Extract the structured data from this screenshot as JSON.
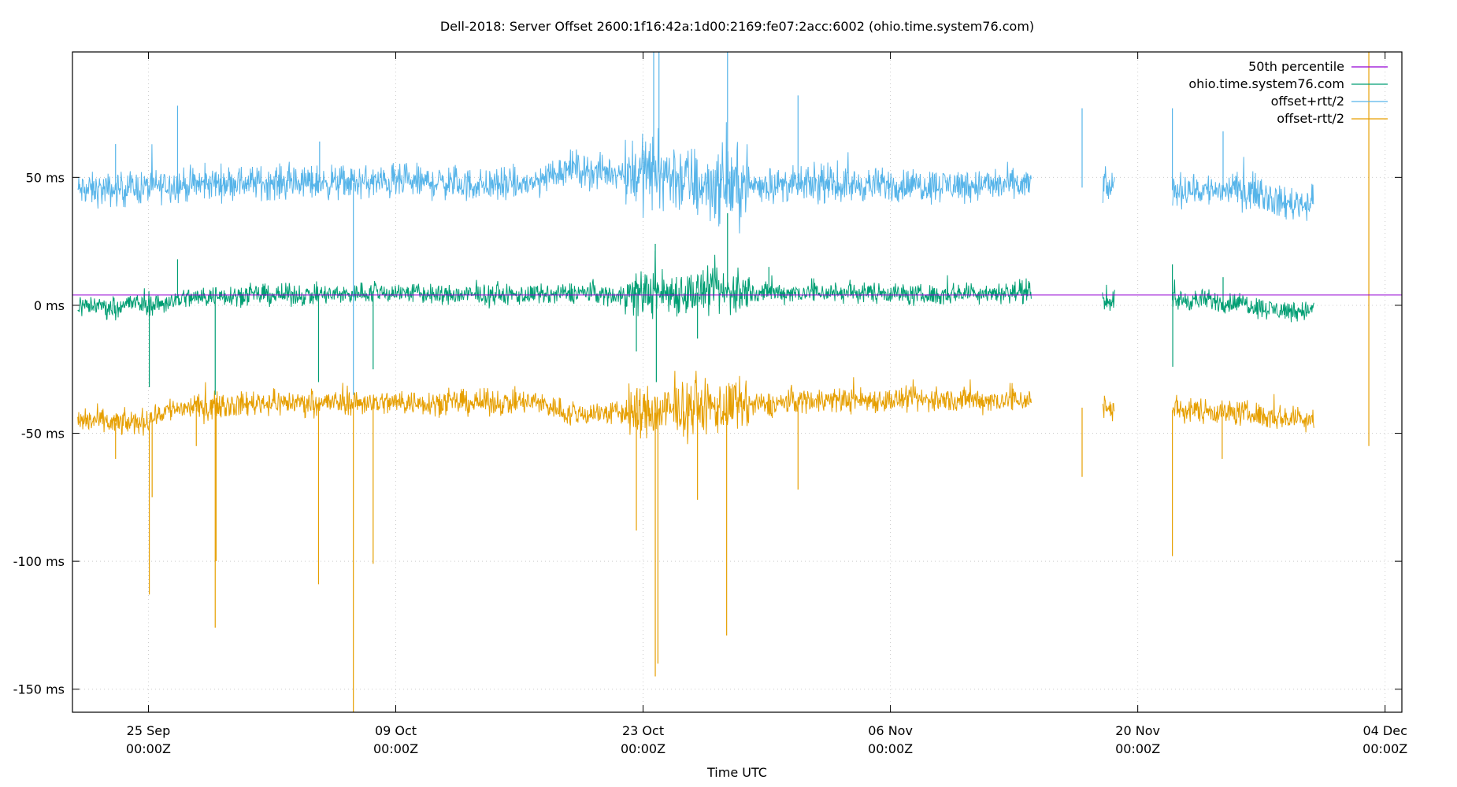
{
  "chart_data": {
    "type": "line",
    "title": "Dell-2018: Server Offset 2600:1f16:42a:1d00:2169:fe07:2acc:6002 (ohio.time.system76.com)",
    "xlabel": "Time UTC",
    "ylabel": "",
    "x_unit": "days since 25 Sep 00:00Z",
    "xlim": [
      -4.3,
      70.95
    ],
    "ylim": [
      -159,
      99
    ],
    "grid": true,
    "legend_position": "top-right",
    "y_ticks": [
      {
        "value": 50,
        "label": "50 ms"
      },
      {
        "value": 0,
        "label": "0 ms"
      },
      {
        "value": -50,
        "label": "-50 ms"
      },
      {
        "value": -100,
        "label": "-100 ms"
      },
      {
        "value": -150,
        "label": "-150 ms"
      }
    ],
    "x_ticks": [
      {
        "value": 0,
        "date": "25 Sep",
        "time": "00:00Z"
      },
      {
        "value": 14,
        "date": "09 Oct",
        "time": "00:00Z"
      },
      {
        "value": 28,
        "date": "23 Oct",
        "time": "00:00Z"
      },
      {
        "value": 42,
        "date": "06 Nov",
        "time": "00:00Z"
      },
      {
        "value": 56,
        "date": "20 Nov",
        "time": "00:00Z"
      },
      {
        "value": 70,
        "date": "04 Dec",
        "time": "00:00Z"
      }
    ],
    "x_days": [
      -4,
      -3,
      -2,
      -1,
      0,
      1,
      2,
      3,
      4,
      5,
      6,
      7,
      8,
      9,
      10,
      11,
      12,
      13,
      14,
      15,
      16,
      17,
      18,
      19,
      20,
      21,
      22,
      23,
      24,
      25,
      26,
      27,
      28,
      29,
      30,
      31,
      32,
      33,
      34,
      35,
      36,
      37,
      38,
      39,
      40,
      41,
      42,
      43,
      44,
      45,
      46,
      47,
      48,
      49,
      50,
      51,
      52,
      53,
      54,
      55,
      56,
      57,
      58,
      59,
      60,
      61,
      62,
      63,
      64,
      65,
      66,
      67,
      68,
      69,
      70
    ],
    "data_gap_days": [
      54.7,
      57.96
    ],
    "high_variability_days": [
      27,
      34
    ],
    "series": [
      {
        "name": "50th percentile",
        "color": "#9400d3",
        "constant": 4
      },
      {
        "name": "ohio.time.system76.com",
        "color": "#009e73",
        "noise_ms": 2.5,
        "values": [
          0,
          0,
          -1,
          1,
          0,
          1,
          3,
          3,
          4,
          4,
          4,
          4,
          4,
          4,
          4,
          4,
          5,
          5,
          5,
          5,
          4,
          4,
          4,
          4,
          4,
          4,
          4,
          4,
          5,
          5,
          4,
          4,
          5,
          5,
          5,
          5,
          5,
          5,
          5,
          5,
          5,
          5,
          5,
          5,
          5,
          5,
          5,
          4,
          4,
          4,
          5,
          5,
          5,
          5,
          5,
          null,
          null,
          null,
          2,
          2,
          2,
          2,
          2,
          2,
          2,
          1,
          1,
          -1,
          -2,
          -2,
          -2
        ]
      },
      {
        "name": "offset+rtt/2",
        "color": "#56b4e9",
        "noise_ms": 4,
        "values": [
          45,
          45,
          45,
          46,
          46,
          47,
          47,
          47,
          48,
          48,
          48,
          48,
          48,
          48,
          48,
          48,
          48,
          48,
          48,
          48,
          48,
          48,
          47,
          47,
          47,
          47,
          48,
          52,
          54,
          52,
          52,
          52,
          52,
          52,
          50,
          47,
          47,
          47,
          47,
          47,
          47,
          47,
          47,
          47,
          47,
          47,
          47,
          47,
          47,
          47,
          47,
          47,
          47,
          47,
          47,
          null,
          null,
          null,
          46,
          46,
          45,
          45,
          45,
          45,
          45,
          45,
          45,
          44,
          40,
          40,
          40
        ]
      },
      {
        "name": "offset-rtt/2",
        "color": "#e69f00",
        "noise_ms": 3,
        "values": [
          -45,
          -45,
          -46,
          -46,
          -45,
          -41,
          -40,
          -40,
          -39,
          -39,
          -38,
          -38,
          -38,
          -38,
          -38,
          -38,
          -38,
          -38,
          -38,
          -38,
          -38,
          -38,
          -38,
          -38,
          -38,
          -38,
          -38,
          -40,
          -43,
          -42,
          -42,
          -42,
          -42,
          -42,
          -41,
          -40,
          -40,
          -40,
          -39,
          -39,
          -38,
          -37,
          -37,
          -37,
          -37,
          -37,
          -37,
          -37,
          -37,
          -37,
          -37,
          -37,
          -37,
          -37,
          -37,
          null,
          null,
          null,
          -40,
          -40,
          -41,
          -41,
          -41,
          -41,
          -41,
          -42,
          -42,
          -43,
          -44,
          -44,
          -44
        ]
      }
    ],
    "spikes": [
      {
        "series": 2,
        "day": -1.86,
        "value": 63
      },
      {
        "series": 2,
        "day": 1.65,
        "value": 78
      },
      {
        "series": 2,
        "day": 9.69,
        "value": 64
      },
      {
        "series": 2,
        "day": 11.6,
        "value": -35
      },
      {
        "series": 2,
        "day": 28.6,
        "value": 99
      },
      {
        "series": 2,
        "day": 28.9,
        "value": 99
      },
      {
        "series": 2,
        "day": 32.78,
        "value": 99
      },
      {
        "series": 2,
        "day": 36.77,
        "value": 82
      },
      {
        "series": 2,
        "day": 52.85,
        "value": 77
      },
      {
        "series": 2,
        "day": 57.96,
        "value": 77
      },
      {
        "series": 2,
        "day": 60.83,
        "value": 68
      },
      {
        "series": 1,
        "day": 0.05,
        "value": -32
      },
      {
        "series": 1,
        "day": 1.65,
        "value": 18
      },
      {
        "series": 1,
        "day": 3.78,
        "value": -35
      },
      {
        "series": 1,
        "day": 9.63,
        "value": -30
      },
      {
        "series": 1,
        "day": 12.72,
        "value": -25
      },
      {
        "series": 1,
        "day": 27.62,
        "value": -18
      },
      {
        "series": 1,
        "day": 28.69,
        "value": 24
      },
      {
        "series": 1,
        "day": 28.75,
        "value": -30
      },
      {
        "series": 1,
        "day": 31.08,
        "value": -13
      },
      {
        "series": 1,
        "day": 32.78,
        "value": 36
      },
      {
        "series": 1,
        "day": 35.12,
        "value": 15
      },
      {
        "series": 1,
        "day": 57.96,
        "value": 16
      },
      {
        "series": 1,
        "day": 57.98,
        "value": -24
      },
      {
        "series": 1,
        "day": 60.83,
        "value": 11
      },
      {
        "series": 3,
        "day": -1.86,
        "value": -60
      },
      {
        "series": 3,
        "day": 0.05,
        "value": -113
      },
      {
        "series": 3,
        "day": 0.21,
        "value": -75
      },
      {
        "series": 3,
        "day": 2.71,
        "value": -55
      },
      {
        "series": 3,
        "day": 3.78,
        "value": -126
      },
      {
        "series": 3,
        "day": 3.83,
        "value": -100
      },
      {
        "series": 3,
        "day": 9.63,
        "value": -109
      },
      {
        "series": 3,
        "day": 11.6,
        "value": -159
      },
      {
        "series": 3,
        "day": 12.72,
        "value": -101
      },
      {
        "series": 3,
        "day": 27.62,
        "value": -88
      },
      {
        "series": 3,
        "day": 28.69,
        "value": -145
      },
      {
        "series": 3,
        "day": 28.84,
        "value": -140
      },
      {
        "series": 3,
        "day": 31.08,
        "value": -76
      },
      {
        "series": 3,
        "day": 32.73,
        "value": -129
      },
      {
        "series": 3,
        "day": 36.77,
        "value": -72
      },
      {
        "series": 3,
        "day": 52.85,
        "value": -67
      },
      {
        "series": 3,
        "day": 57.96,
        "value": -98
      },
      {
        "series": 3,
        "day": 60.78,
        "value": -60
      },
      {
        "series": 3,
        "day": 69.08,
        "value": -55
      }
    ]
  }
}
